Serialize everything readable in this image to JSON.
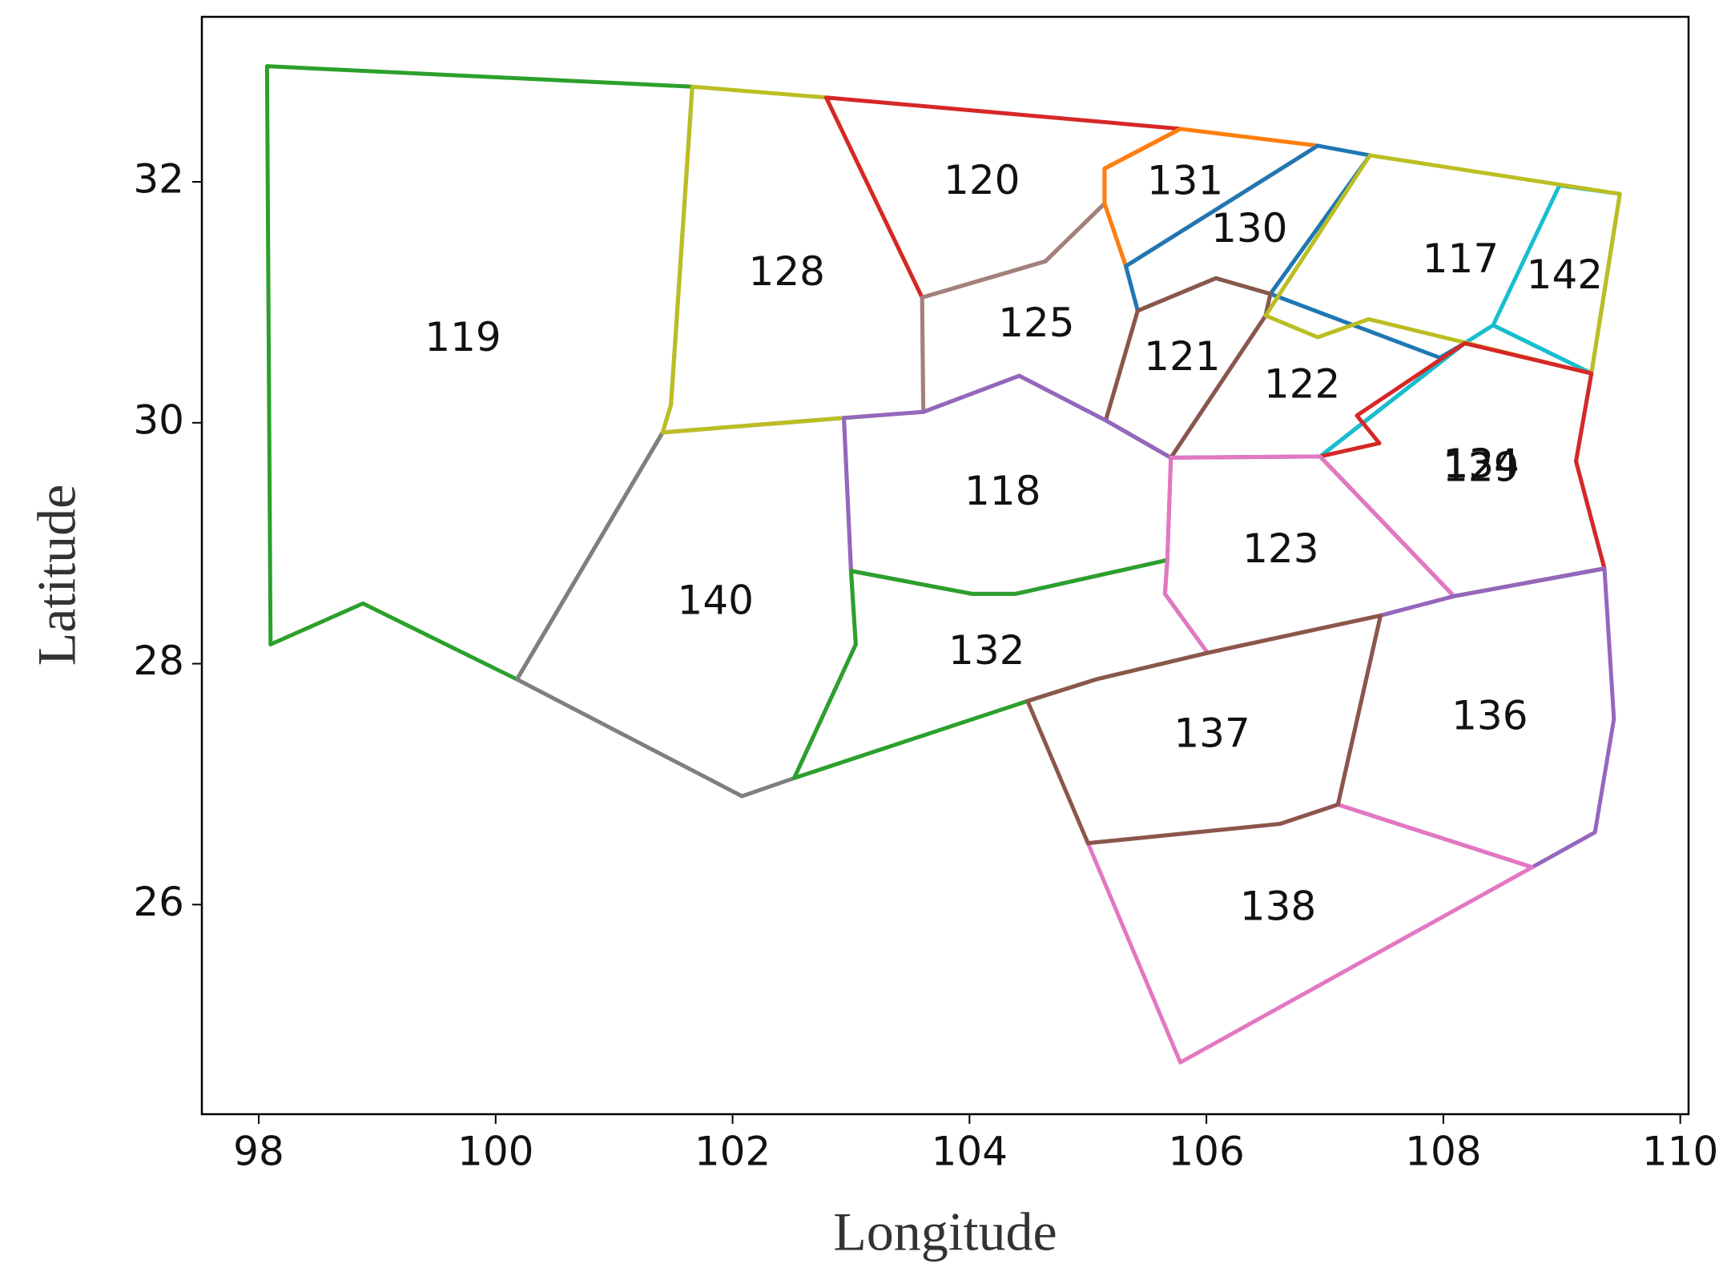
{
  "chart_data": {
    "type": "map",
    "xlabel": "Longitude",
    "ylabel": "Latitude",
    "xlim": [
      97.52,
      110.07
    ],
    "ylim": [
      24.26,
      33.37
    ],
    "xticks": [
      98,
      100,
      102,
      104,
      106,
      108,
      110
    ],
    "yticks": [
      26,
      28,
      30,
      32
    ],
    "regions": [
      {
        "name": "119",
        "color": "#2ca02c",
        "x": [
          98.07,
          101.66,
          101.48,
          101.41,
          100.18,
          98.88,
          98.1
        ],
        "y": [
          32.96,
          32.79,
          30.15,
          29.92,
          27.87,
          28.5,
          28.16
        ]
      },
      {
        "name": "140",
        "color": "#7f7f7f",
        "x": [
          101.41,
          102.94,
          103.0,
          103.04,
          102.52,
          102.08,
          100.18
        ],
        "y": [
          29.92,
          30.04,
          28.77,
          28.16,
          27.05,
          26.9,
          27.87
        ]
      },
      {
        "name": "128",
        "color": "#bcbd22",
        "x": [
          101.66,
          102.79,
          103.6,
          103.61,
          102.94,
          101.41,
          101.48
        ],
        "y": [
          32.79,
          32.7,
          31.04,
          30.09,
          30.04,
          29.92,
          30.15
        ]
      },
      {
        "name": "120",
        "color": "#d62728",
        "x": [
          102.79,
          105.78,
          105.14,
          105.14,
          104.64,
          103.6
        ],
        "y": [
          32.7,
          32.44,
          32.11,
          31.82,
          31.34,
          31.04
        ]
      },
      {
        "name": "125",
        "color": "#a0817c",
        "x": [
          103.6,
          104.64,
          105.14,
          105.32,
          105.42,
          105.15,
          104.42,
          103.61
        ],
        "y": [
          31.04,
          31.34,
          31.82,
          31.3,
          30.93,
          30.02,
          30.39,
          30.09
        ]
      },
      {
        "name": "131",
        "color": "#ff7f0e",
        "x": [
          105.78,
          106.94,
          105.32,
          105.14,
          105.14
        ],
        "y": [
          32.44,
          32.3,
          31.3,
          31.82,
          32.11
        ]
      },
      {
        "name": "122",
        "color": "#1f77b4",
        "x": [
          106.5,
          106.54,
          107.97,
          108.18,
          106.96,
          105.7
        ],
        "y": [
          30.89,
          31.07,
          30.54,
          30.66,
          29.72,
          29.71
        ]
      },
      {
        "name": "130",
        "color": "#1f77b4",
        "x": [
          106.94,
          107.38,
          106.54,
          106.08,
          105.42,
          105.32
        ],
        "y": [
          32.3,
          32.22,
          31.07,
          31.2,
          30.93,
          31.3
        ]
      },
      {
        "name": "121",
        "color": "#8c564b",
        "x": [
          105.42,
          106.08,
          106.54,
          106.5,
          105.7,
          105.15
        ],
        "y": [
          30.93,
          31.2,
          31.07,
          30.89,
          29.71,
          30.02
        ]
      },
      {
        "name": "134",
        "color": "#17becf",
        "x": [
          108.42,
          108.18,
          106.96,
          108.09,
          109.36,
          109.12,
          109.25
        ],
        "y": [
          30.81,
          30.66,
          29.72,
          28.56,
          28.79,
          29.68,
          30.41
        ]
      },
      {
        "name": "142",
        "color": "#17becf",
        "x": [
          108.98,
          109.49,
          109.25,
          108.42
        ],
        "y": [
          31.97,
          31.9,
          30.41,
          30.81
        ]
      },
      {
        "name": "117",
        "color": "#bcbd22",
        "x": [
          107.38,
          109.49,
          109.25,
          107.37,
          106.94,
          106.5
        ],
        "y": [
          32.22,
          31.9,
          30.41,
          30.86,
          30.71,
          30.89
        ]
      },
      {
        "name": "129",
        "color": "#d62728",
        "x": [
          109.25,
          108.18,
          107.27,
          107.46,
          106.96,
          108.09,
          109.36,
          109.12
        ],
        "y": [
          30.41,
          30.66,
          30.06,
          29.83,
          29.72,
          28.56,
          28.79,
          29.68
        ]
      },
      {
        "name": "118",
        "color": "#9467bd",
        "x": [
          103.61,
          104.42,
          105.15,
          105.7,
          105.67,
          104.39,
          104.02,
          103.0,
          102.94
        ],
        "y": [
          30.09,
          30.39,
          30.02,
          29.71,
          28.86,
          28.58,
          28.58,
          28.77,
          30.04
        ]
      },
      {
        "name": "132",
        "color": "#2ca02c",
        "x": [
          103.0,
          104.02,
          104.39,
          105.67,
          105.65,
          106.01,
          105.07,
          104.49,
          102.52,
          103.04
        ],
        "y": [
          28.77,
          28.58,
          28.58,
          28.86,
          28.58,
          28.09,
          27.87,
          27.69,
          27.05,
          28.16
        ]
      },
      {
        "name": "123",
        "color": "#e377c2",
        "x": [
          105.7,
          106.96,
          108.09,
          107.47,
          106.01,
          105.65,
          105.67
        ],
        "y": [
          29.71,
          29.72,
          28.56,
          28.4,
          28.09,
          28.58,
          28.86
        ]
      },
      {
        "name": "136",
        "color": "#9467bd",
        "x": [
          107.47,
          108.09,
          109.36,
          109.44,
          109.28,
          108.75,
          107.11
        ],
        "y": [
          28.4,
          28.56,
          28.79,
          27.54,
          26.6,
          26.31,
          26.83
        ]
      },
      {
        "name": "138",
        "color": "#e377c2",
        "x": [
          105.0,
          106.62,
          107.11,
          108.75,
          105.78
        ],
        "y": [
          26.51,
          26.67,
          26.83,
          26.31,
          24.69
        ]
      },
      {
        "name": "137",
        "color": "#8c564b",
        "x": [
          104.49,
          105.07,
          106.01,
          107.47,
          107.11,
          106.62,
          105.0
        ],
        "y": [
          27.69,
          27.87,
          28.09,
          28.4,
          26.83,
          26.67,
          26.51
        ]
      }
    ]
  }
}
